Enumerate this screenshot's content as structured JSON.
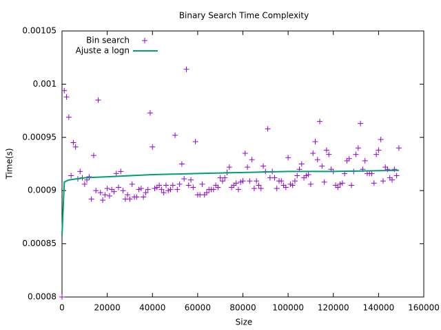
{
  "chart_data": {
    "type": "scatter",
    "title": "Binary Search Time Complexity",
    "x_label": "Size",
    "y_label": "Time(s)",
    "xlim": [
      0,
      160000
    ],
    "xticks": [
      0,
      20000,
      40000,
      60000,
      80000,
      100000,
      120000,
      140000,
      160000
    ],
    "ylim": [
      0.0008,
      0.00105
    ],
    "yticks": [
      0.0008,
      0.00085,
      0.0009,
      0.00095,
      0.001,
      0.00105
    ],
    "legend": "top-left",
    "series": [
      {
        "name": "Bin search",
        "type": "scatter",
        "color": "#9400d3",
        "x": [
          0,
          1000,
          2000,
          3000,
          4000,
          5000,
          6000,
          7000,
          8000,
          9000,
          10000,
          11000,
          12000,
          13000,
          14000,
          15000,
          16000,
          17000,
          18000,
          19000,
          20000,
          21000,
          22000,
          23000,
          24000,
          25000,
          26000,
          27000,
          28000,
          29000,
          30000,
          31000,
          32000,
          33000,
          34000,
          35000,
          36000,
          37000,
          38000,
          39000,
          40000,
          41000,
          42000,
          43000,
          44000,
          45000,
          46000,
          47000,
          48000,
          49000,
          50000,
          51000,
          52000,
          53000,
          54000,
          55000,
          56000,
          57000,
          58000,
          59000,
          60000,
          61000,
          62000,
          63000,
          64000,
          65000,
          66000,
          67000,
          68000,
          69000,
          70000,
          71000,
          72000,
          73000,
          74000,
          75000,
          76000,
          77000,
          78000,
          79000,
          80000,
          81000,
          82000,
          83000,
          84000,
          85000,
          86000,
          87000,
          88000,
          89000,
          90000,
          91000,
          92000,
          93000,
          94000,
          95000,
          96000,
          97000,
          98000,
          99000,
          100000,
          101000,
          102000,
          103000,
          104000,
          105000,
          106000,
          107000,
          108000,
          109000,
          110000,
          111000,
          112000,
          113000,
          114000,
          115000,
          116000,
          117000,
          118000,
          119000,
          120000,
          121000,
          122000,
          123000,
          124000,
          125000,
          126000,
          127000,
          128000,
          129000,
          130000,
          131000,
          132000,
          133000,
          134000,
          135000,
          136000,
          137000,
          138000,
          139000,
          140000,
          141000,
          142000,
          143000,
          144000,
          145000,
          146000,
          147000,
          148000,
          149000
        ],
        "values": [
          0.0008,
          0.000994,
          0.000988,
          0.000969,
          0.000914,
          0.000945,
          0.000941,
          0.000911,
          0.000918,
          0.000912,
          0.000906,
          0.00091,
          0.000913,
          0.000892,
          0.000933,
          0.0009,
          0.000985,
          0.000898,
          0.000891,
          0.000896,
          0.000902,
          0.000895,
          0.000901,
          0.000899,
          0.000916,
          0.000903,
          0.000918,
          0.0009,
          0.000892,
          0.000896,
          0.000892,
          0.000906,
          0.000894,
          0.000894,
          0.000901,
          0.000902,
          0.000894,
          0.000898,
          0.000901,
          0.000973,
          0.000941,
          0.000902,
          0.000903,
          0.000905,
          0.000901,
          0.000898,
          0.000905,
          0.0009,
          0.000901,
          0.000905,
          0.000952,
          0.000901,
          0.000906,
          0.000925,
          0.000911,
          0.001014,
          0.000905,
          0.00091,
          0.000903,
          0.000946,
          0.000896,
          0.000896,
          0.000906,
          0.000896,
          0.000898,
          0.000901,
          0.000901,
          0.000901,
          0.000905,
          0.000903,
          0.000912,
          0.000909,
          0.000912,
          0.000917,
          0.000922,
          0.000903,
          0.000905,
          0.000907,
          0.000901,
          0.000908,
          0.000909,
          0.000935,
          0.000922,
          0.000909,
          0.000929,
          0.000902,
          0.000909,
          0.000905,
          0.000902,
          0.000923,
          0.000918,
          0.000958,
          0.000912,
          0.000918,
          0.000912,
          0.000902,
          0.000909,
          0.000909,
          0.000905,
          0.000903,
          0.000931,
          0.000906,
          0.000905,
          0.000909,
          0.000914,
          0.00092,
          0.000925,
          0.000912,
          0.000914,
          0.000915,
          0.000906,
          0.000935,
          0.000946,
          0.000929,
          0.000965,
          0.000923,
          0.000908,
          0.000938,
          0.000934,
          0.00092,
          0.000918,
          0.000905,
          0.000903,
          0.000906,
          0.000907,
          0.000916,
          0.000928,
          0.00093,
          0.000905,
          0.000918,
          0.000934,
          0.00094,
          0.000963,
          0.00092,
          0.000928,
          0.000916,
          0.000916,
          0.000916,
          0.000907,
          0.000934,
          0.000938,
          0.000948,
          0.000909,
          0.000922,
          0.00092,
          0.000912,
          0.00091,
          0.00092,
          0.000914,
          0.00094
        ]
      },
      {
        "name": "Ajuste a logn",
        "type": "line",
        "color": "#009e73",
        "x": [
          1,
          1000,
          3000,
          10000,
          20000,
          40000,
          60000,
          80000,
          100000,
          120000,
          149000
        ],
        "values": [
          0.000858,
          0.000908,
          0.00091,
          0.000912,
          0.000913,
          0.000915,
          0.000916,
          0.000917,
          0.000918,
          0.000918,
          0.000919
        ]
      }
    ]
  }
}
